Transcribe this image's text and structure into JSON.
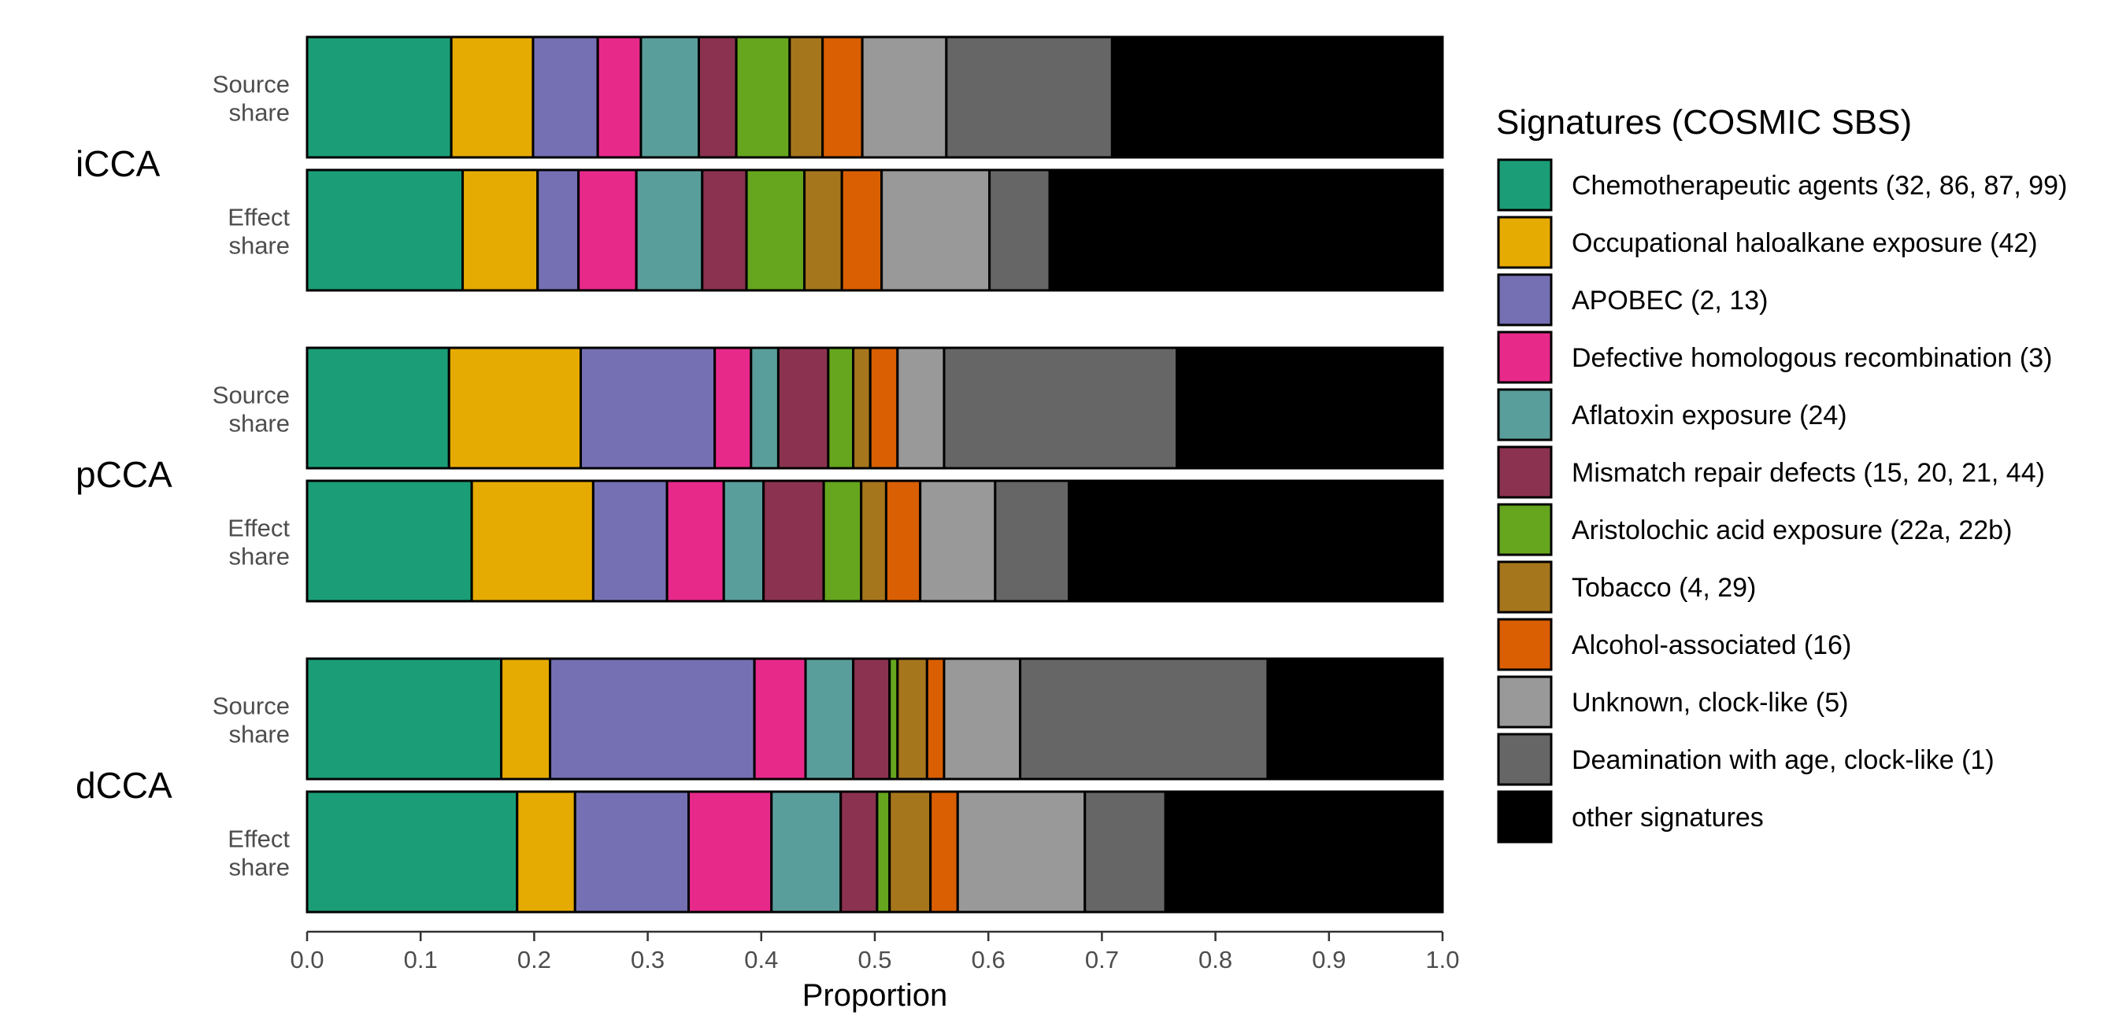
{
  "chart_data": {
    "type": "bar",
    "orientation": "horizontal",
    "stacked": true,
    "xlabel": "Proportion",
    "xlim": [
      0,
      1
    ],
    "xticks": [
      "0.0",
      "0.1",
      "0.2",
      "0.3",
      "0.4",
      "0.5",
      "0.6",
      "0.7",
      "0.8",
      "0.9",
      "1.0"
    ],
    "grid": false,
    "legend": {
      "title": "Signatures (COSMIC SBS)",
      "placement": "right"
    },
    "series": [
      {
        "name": "Chemotherapeutic agents (32, 86, 87, 99)",
        "color": "#1b9e77"
      },
      {
        "name": "Occupational haloalkane exposure (42)",
        "color": "#e6ab02"
      },
      {
        "name": "APOBEC (2, 13)",
        "color": "#7570b3"
      },
      {
        "name": "Defective homologous recombination (3)",
        "color": "#e7298a"
      },
      {
        "name": "Aflatoxin exposure (24)",
        "color": "#5a9e9b"
      },
      {
        "name": "Mismatch repair defects (15, 20, 21, 44)",
        "color": "#8b3250"
      },
      {
        "name": "Aristolochic acid exposure (22a, 22b)",
        "color": "#66a61e"
      },
      {
        "name": "Tobacco (4, 29)",
        "color": "#a6761d"
      },
      {
        "name": "Alcohol-associated (16)",
        "color": "#d95f02"
      },
      {
        "name": "Unknown, clock-like (5)",
        "color": "#999999"
      },
      {
        "name": "Deamination with age, clock-like (1)",
        "color": "#666666"
      },
      {
        "name": "other signatures",
        "color": "#000000"
      }
    ],
    "groups": [
      {
        "name": "iCCA",
        "rows": [
          {
            "label": [
              "Source",
              "share"
            ],
            "values": [
              0.127,
              0.072,
              0.057,
              0.038,
              0.051,
              0.033,
              0.047,
              0.029,
              0.035,
              0.074,
              0.146,
              0.291
            ]
          },
          {
            "label": [
              "Effect",
              "share"
            ],
            "values": [
              0.137,
              0.066,
              0.036,
              0.051,
              0.058,
              0.039,
              0.051,
              0.033,
              0.035,
              0.095,
              0.053,
              0.346
            ]
          }
        ]
      },
      {
        "name": "pCCA",
        "rows": [
          {
            "label": [
              "Source",
              "share"
            ],
            "values": [
              0.125,
              0.116,
              0.118,
              0.032,
              0.024,
              0.044,
              0.022,
              0.015,
              0.024,
              0.041,
              0.205,
              0.234
            ]
          },
          {
            "label": [
              "Effect",
              "share"
            ],
            "values": [
              0.145,
              0.107,
              0.065,
              0.05,
              0.035,
              0.053,
              0.033,
              0.022,
              0.03,
              0.066,
              0.065,
              0.329
            ]
          }
        ]
      },
      {
        "name": "dCCA",
        "rows": [
          {
            "label": [
              "Source",
              "share"
            ],
            "values": [
              0.171,
              0.043,
              0.18,
              0.045,
              0.042,
              0.032,
              0.007,
              0.026,
              0.015,
              0.067,
              0.218,
              0.154
            ]
          },
          {
            "label": [
              "Effect",
              "share"
            ],
            "values": [
              0.185,
              0.051,
              0.1,
              0.073,
              0.061,
              0.032,
              0.011,
              0.036,
              0.024,
              0.112,
              0.071,
              0.244
            ]
          }
        ]
      }
    ]
  }
}
